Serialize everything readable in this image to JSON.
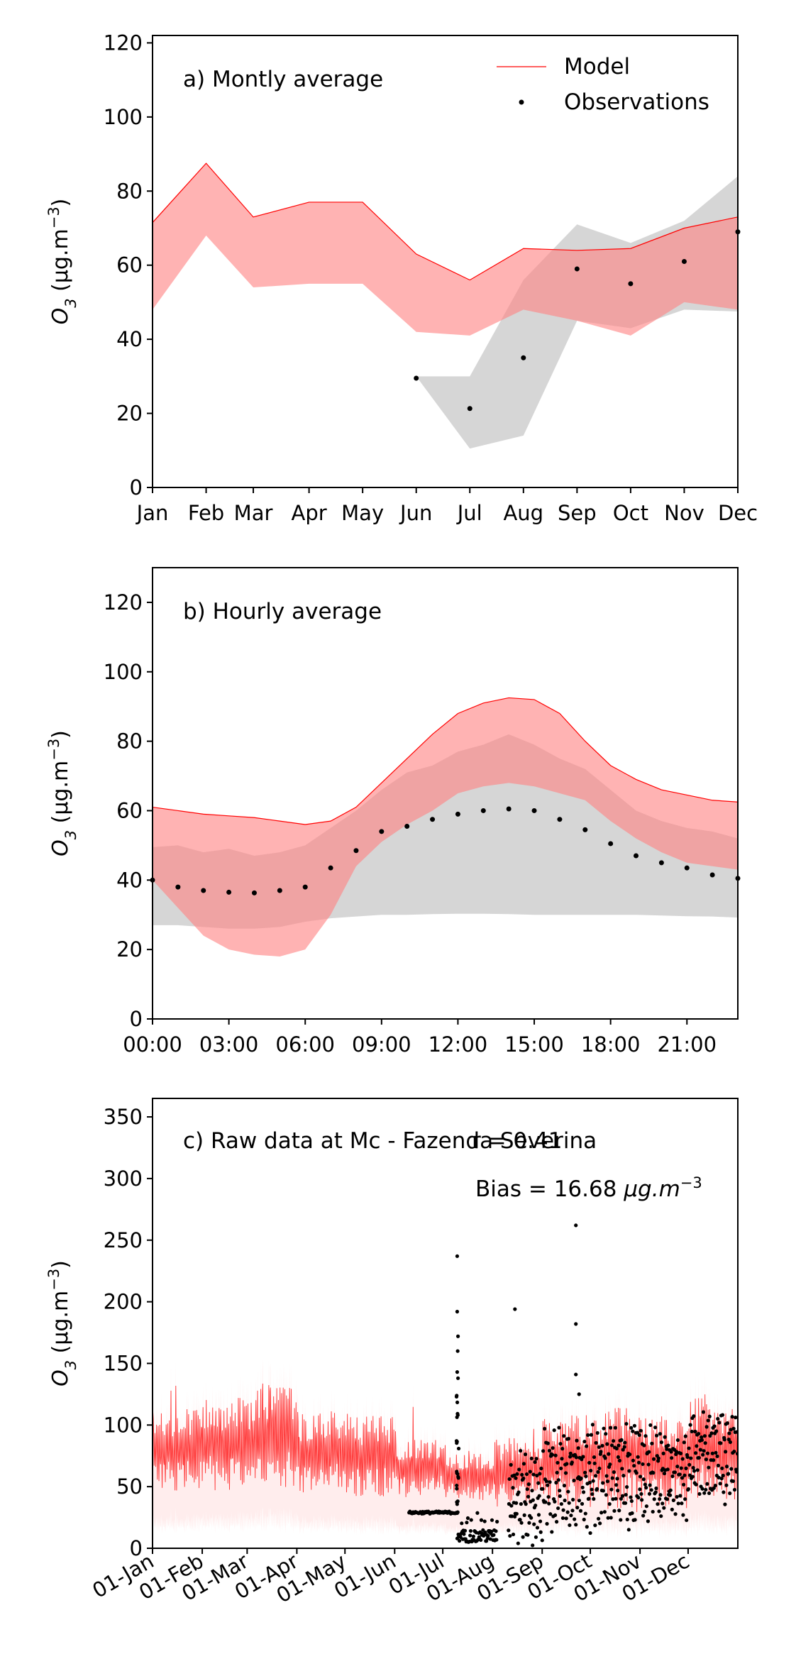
{
  "colors": {
    "model_line": "#ff0000",
    "model_band": "#ff8080",
    "obs_band": "#b4b4b4",
    "obs_point": "#000000",
    "raw_model": "#ff2020",
    "raw_model_shade": "#ffcccc"
  },
  "chart_data": [
    {
      "type": "line",
      "annotation": "a) Montly average",
      "ylabel": "O$_3$ (μg.m⁻³)",
      "ylabel_main": "O",
      "ylabel_sub": "3",
      "ylabel_units": " (μg.m",
      "ylabel_sup": "−3",
      "ylabel_close": ")",
      "xlabel": "",
      "ylim": [
        0,
        122
      ],
      "yticks": [
        0,
        20,
        40,
        60,
        80,
        100,
        120
      ],
      "categories": [
        "Jan",
        "Feb",
        "Mar",
        "Apr",
        "May",
        "Jun",
        "Jul",
        "Aug",
        "Sep",
        "Oct",
        "Nov",
        "Dec"
      ],
      "x": [
        0,
        1,
        1.88,
        2.92,
        3.92,
        4.92,
        5.92,
        6.92,
        7.92,
        8.92,
        9.92,
        10.92
      ],
      "legend": {
        "placement": "top-right",
        "entries": [
          "Model",
          "Observations"
        ]
      },
      "model_upper": [
        71.5,
        87.5,
        73,
        77,
        77,
        63,
        56,
        64.5,
        64,
        64.5,
        70,
        73
      ],
      "model_lower": [
        48,
        68,
        54,
        55,
        55,
        42,
        41,
        48,
        45,
        41,
        50,
        48
      ],
      "obs_band": [
        {
          "x": 4.92,
          "upper": 30,
          "lower": 30
        },
        {
          "x": 5.92,
          "upper": 30,
          "lower": 10.5
        },
        {
          "x": 6.92,
          "upper": 56,
          "lower": 14
        },
        {
          "x": 7.92,
          "upper": 71,
          "lower": 45
        },
        {
          "x": 8.92,
          "upper": 66,
          "lower": 43
        },
        {
          "x": 9.92,
          "upper": 72,
          "lower": 48
        },
        {
          "x": 10.92,
          "upper": 84,
          "lower": 47.5
        }
      ],
      "observations": [
        {
          "x": 4.92,
          "y": 29.5
        },
        {
          "x": 5.92,
          "y": 21.3
        },
        {
          "x": 6.92,
          "y": 35
        },
        {
          "x": 7.92,
          "y": 59
        },
        {
          "x": 8.92,
          "y": 55
        },
        {
          "x": 9.92,
          "y": 61
        },
        {
          "x": 10.92,
          "y": 69
        }
      ]
    },
    {
      "type": "line",
      "annotation": "b) Hourly average",
      "ylabel_main": "O",
      "ylabel_sub": "3",
      "ylabel_units": " (μg.m",
      "ylabel_sup": "−3",
      "ylabel_close": ")",
      "xlabel": "",
      "ylim": [
        0,
        130
      ],
      "yticks": [
        0,
        20,
        40,
        60,
        80,
        100,
        120
      ],
      "xlim": [
        0,
        23
      ],
      "xticks": [
        "00:00",
        "03:00",
        "06:00",
        "09:00",
        "12:00",
        "15:00",
        "18:00",
        "21:00"
      ],
      "hours": [
        0,
        1,
        2,
        3,
        4,
        5,
        6,
        7,
        8,
        9,
        10,
        11,
        12,
        13,
        14,
        15,
        16,
        17,
        18,
        19,
        20,
        21,
        22,
        23
      ],
      "model_upper": [
        61,
        60,
        59,
        58.5,
        58,
        57,
        56,
        57,
        61,
        68,
        75,
        82,
        88,
        91,
        92.5,
        92,
        88,
        80,
        73,
        69,
        66,
        64.5,
        63,
        62.5
      ],
      "model_lower": [
        40,
        32,
        24,
        20,
        18.5,
        18,
        20,
        30,
        44,
        51,
        56,
        60,
        65,
        67,
        68,
        67,
        65,
        63,
        57,
        52,
        48,
        45,
        44,
        43
      ],
      "obs_band_upper": [
        49.5,
        50,
        48,
        49,
        47,
        48,
        50,
        55,
        60,
        66,
        71,
        73,
        77,
        79,
        82,
        79,
        75,
        72,
        66,
        60,
        57,
        55,
        54,
        52
      ],
      "obs_band_lower": [
        27,
        27,
        26.5,
        26,
        26,
        26.5,
        28,
        29,
        29.5,
        30,
        30,
        30.2,
        30.3,
        30.3,
        30.2,
        30,
        30,
        30,
        30,
        30,
        29.8,
        29.6,
        29.5,
        29.2
      ],
      "observations": [
        40,
        38,
        37,
        36.5,
        36.3,
        37,
        38,
        43.5,
        48.5,
        54,
        55.5,
        57.5,
        59,
        60,
        60.5,
        60,
        57.5,
        54.5,
        50.5,
        47,
        45,
        43.5,
        41.5,
        40.5
      ]
    },
    {
      "type": "scatter",
      "annotation": "c) Raw data at Mc - Fazenda Severina",
      "stat_r": "r = 0.41",
      "stat_bias_prefix": "Bias = 16.68 ",
      "stat_bias_units": "μg.m",
      "stat_bias_sup": "−3",
      "ylabel_main": "O",
      "ylabel_sub": "3",
      "ylabel_units": " (μg.m",
      "ylabel_sup": "−3",
      "ylabel_close": ")",
      "xlabel": "",
      "ylim": [
        0,
        365
      ],
      "yticks": [
        0,
        50,
        100,
        150,
        200,
        250,
        300,
        350
      ],
      "xlim_days": [
        0,
        365
      ],
      "xtick_days": [
        0,
        31,
        59,
        90,
        120,
        151,
        181,
        212,
        243,
        273,
        304,
        334
      ],
      "xtick_labels": [
        "01-Jan",
        "01-Feb",
        "01-Mar",
        "01-Apr",
        "01-May",
        "01-Jun",
        "01-Jul",
        "01-Aug",
        "01-Sep",
        "01-Oct",
        "01-Nov",
        "01-Dec"
      ],
      "obs_outliers": [
        {
          "day": 190,
          "y": 237
        },
        {
          "day": 190,
          "y": 192
        },
        {
          "day": 190.5,
          "y": 172
        },
        {
          "day": 190.3,
          "y": 160
        },
        {
          "day": 226,
          "y": 194
        },
        {
          "day": 264,
          "y": 262
        },
        {
          "day": 264,
          "y": 182
        },
        {
          "day": 264,
          "y": 141
        },
        {
          "day": 266,
          "y": 125
        },
        {
          "day": 190,
          "y": 143
        },
        {
          "day": 190.5,
          "y": 138
        }
      ]
    }
  ]
}
